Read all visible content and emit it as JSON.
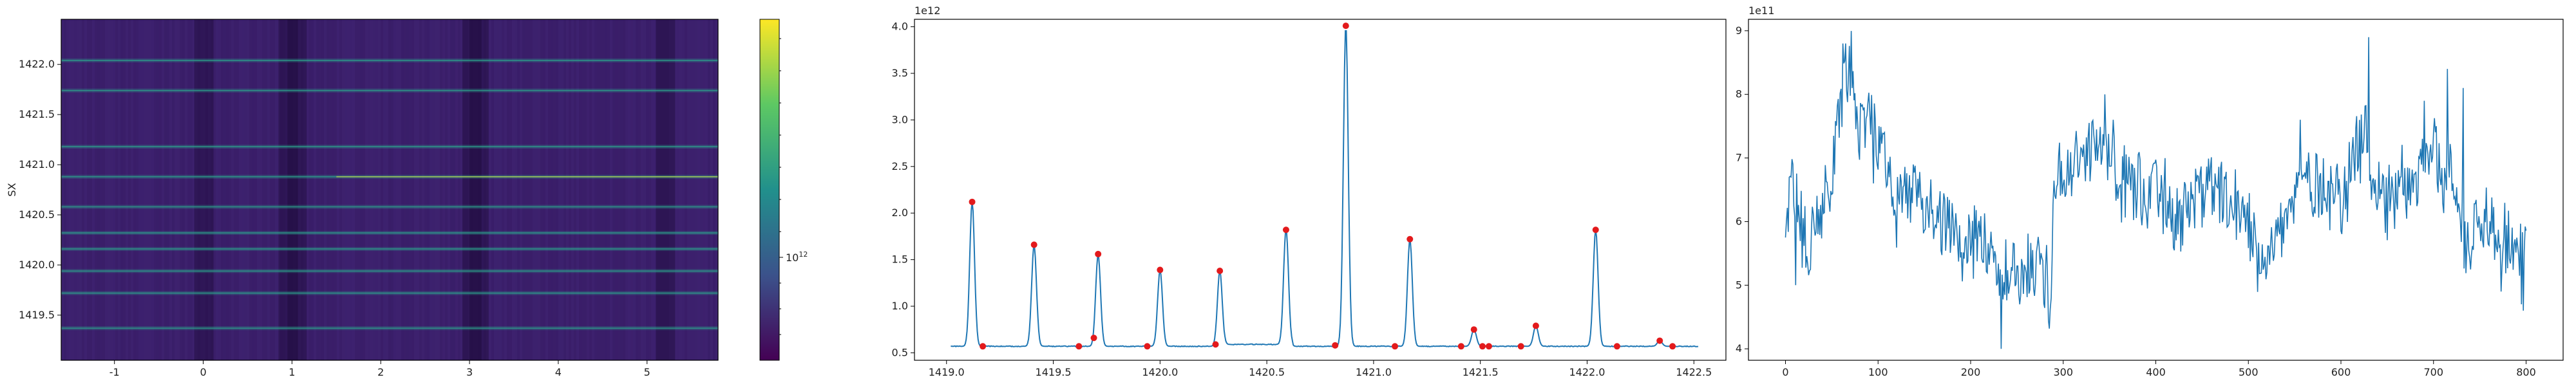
{
  "chart_data": [
    {
      "type": "heatmap",
      "title": "",
      "xlabel": "",
      "ylabel": "SX",
      "xlim": [
        -1.6,
        5.8
      ],
      "ylim": [
        1419.05,
        1422.45
      ],
      "x_ticks": [
        -1,
        0,
        1,
        2,
        3,
        4,
        5
      ],
      "y_ticks": [
        1419.5,
        1420.0,
        1420.5,
        1421.0,
        1421.5,
        1422.0
      ],
      "y_tick_labels": [
        "1419.5",
        "1420.0",
        "1420.5",
        "1421.0",
        "1421.5",
        "1422.0"
      ],
      "colormap": "viridis",
      "colorbar": {
        "scale": "log",
        "label": "",
        "tick_label": "10^12",
        "tick_label_base": "10",
        "tick_label_exp": "12"
      },
      "bright_bands_sx": [
        1419.37,
        1419.72,
        1419.94,
        1420.16,
        1420.32,
        1420.58,
        1420.88,
        1421.18,
        1421.74,
        1422.04
      ],
      "dark_columns_x": [
        0.0,
        0.95,
        1.05,
        3.02,
        3.1,
        5.2
      ],
      "background_color": "#3b1f6b",
      "band_color": "#2ca58d",
      "highlight_color": "#c9e04a"
    },
    {
      "type": "line",
      "title": "",
      "xlabel": "",
      "ylabel": "",
      "y_offset_label": "1e12",
      "xlim": [
        1418.85,
        1422.65
      ],
      "ylim": [
        0.42,
        4.08
      ],
      "x_ticks": [
        1419.0,
        1419.5,
        1420.0,
        1420.5,
        1421.0,
        1421.5,
        1422.0,
        1422.5
      ],
      "x_tick_labels": [
        "1419.0",
        "1419.5",
        "1420.0",
        "1420.5",
        "1421.0",
        "1421.5",
        "1422.0",
        "1422.5"
      ],
      "y_ticks": [
        0.5,
        1.0,
        1.5,
        2.0,
        2.5,
        3.0,
        3.5,
        4.0
      ],
      "y_tick_labels": [
        "0.5",
        "1.0",
        "1.5",
        "2.0",
        "2.5",
        "3.0",
        "3.5",
        "4.0"
      ],
      "baseline": 0.57,
      "x_start": 1419.02,
      "x_end": 1422.52,
      "line_color": "#1f77b4",
      "marker_color": "#e31a1c",
      "peaks": [
        {
          "x": 1419.12,
          "y": 2.12
        },
        {
          "x": 1419.41,
          "y": 1.66
        },
        {
          "x": 1419.71,
          "y": 1.56
        },
        {
          "x": 1420.0,
          "y": 1.39
        },
        {
          "x": 1420.28,
          "y": 1.38
        },
        {
          "x": 1420.59,
          "y": 1.82
        },
        {
          "x": 1420.87,
          "y": 4.01
        },
        {
          "x": 1421.17,
          "y": 1.72
        },
        {
          "x": 1421.47,
          "y": 0.75
        },
        {
          "x": 1421.76,
          "y": 0.79
        },
        {
          "x": 1422.04,
          "y": 1.82
        },
        {
          "x": 1422.34,
          "y": 0.63
        }
      ],
      "markers": [
        {
          "x": 1419.12,
          "y": 2.12
        },
        {
          "x": 1419.17,
          "y": 0.57
        },
        {
          "x": 1419.41,
          "y": 1.66
        },
        {
          "x": 1419.62,
          "y": 0.57
        },
        {
          "x": 1419.69,
          "y": 0.66
        },
        {
          "x": 1419.71,
          "y": 1.56
        },
        {
          "x": 1419.94,
          "y": 0.57
        },
        {
          "x": 1420.0,
          "y": 1.39
        },
        {
          "x": 1420.26,
          "y": 0.59
        },
        {
          "x": 1420.28,
          "y": 1.38
        },
        {
          "x": 1420.59,
          "y": 1.82
        },
        {
          "x": 1420.82,
          "y": 0.58
        },
        {
          "x": 1420.87,
          "y": 4.01
        },
        {
          "x": 1421.1,
          "y": 0.57
        },
        {
          "x": 1421.17,
          "y": 1.72
        },
        {
          "x": 1421.41,
          "y": 0.57
        },
        {
          "x": 1421.47,
          "y": 0.75
        },
        {
          "x": 1421.51,
          "y": 0.57
        },
        {
          "x": 1421.54,
          "y": 0.57
        },
        {
          "x": 1421.69,
          "y": 0.57
        },
        {
          "x": 1421.76,
          "y": 0.79
        },
        {
          "x": 1422.04,
          "y": 1.82
        },
        {
          "x": 1422.14,
          "y": 0.57
        },
        {
          "x": 1422.34,
          "y": 0.63
        },
        {
          "x": 1422.4,
          "y": 0.57
        }
      ]
    },
    {
      "type": "line",
      "title": "",
      "xlabel": "",
      "ylabel": "",
      "y_offset_label": "1e11",
      "xlim": [
        -40,
        840
      ],
      "ylim": [
        3.82,
        9.18
      ],
      "x_ticks": [
        0,
        100,
        200,
        300,
        400,
        500,
        600,
        700,
        800
      ],
      "x_tick_labels": [
        "0",
        "100",
        "200",
        "300",
        "400",
        "500",
        "600",
        "700",
        "800"
      ],
      "y_ticks": [
        4,
        5,
        6,
        7,
        8,
        9
      ],
      "y_tick_labels": [
        "4",
        "5",
        "6",
        "7",
        "8",
        "9"
      ],
      "line_color": "#1f77b4",
      "anchors": [
        [
          0,
          5.5
        ],
        [
          5,
          6.6
        ],
        [
          15,
          6.0
        ],
        [
          25,
          5.3
        ],
        [
          35,
          6.2
        ],
        [
          50,
          6.8
        ],
        [
          60,
          7.9
        ],
        [
          70,
          8.4
        ],
        [
          80,
          7.5
        ],
        [
          90,
          7.8
        ],
        [
          100,
          7.4
        ],
        [
          110,
          6.9
        ],
        [
          120,
          6.2
        ],
        [
          135,
          6.5
        ],
        [
          150,
          6.2
        ],
        [
          165,
          6.0
        ],
        [
          180,
          5.9
        ],
        [
          195,
          5.6
        ],
        [
          205,
          5.9
        ],
        [
          220,
          5.4
        ],
        [
          235,
          5.0
        ],
        [
          245,
          5.4
        ],
        [
          255,
          5.0
        ],
        [
          265,
          5.4
        ],
        [
          280,
          5.0
        ],
        [
          286,
          4.9
        ],
        [
          290,
          6.6
        ],
        [
          300,
          6.8
        ],
        [
          320,
          6.9
        ],
        [
          340,
          7.3
        ],
        [
          360,
          6.6
        ],
        [
          380,
          6.5
        ],
        [
          400,
          6.6
        ],
        [
          420,
          6.1
        ],
        [
          440,
          6.3
        ],
        [
          460,
          6.5
        ],
        [
          480,
          6.2
        ],
        [
          500,
          6.0
        ],
        [
          510,
          5.5
        ],
        [
          520,
          5.6
        ],
        [
          540,
          6.0
        ],
        [
          560,
          6.7
        ],
        [
          580,
          6.6
        ],
        [
          600,
          6.4
        ],
        [
          615,
          6.9
        ],
        [
          625,
          7.5
        ],
        [
          635,
          6.7
        ],
        [
          650,
          6.3
        ],
        [
          665,
          6.7
        ],
        [
          680,
          6.6
        ],
        [
          700,
          7.2
        ],
        [
          710,
          6.6
        ],
        [
          720,
          6.9
        ],
        [
          735,
          5.5
        ],
        [
          745,
          6.0
        ],
        [
          760,
          6.1
        ],
        [
          775,
          5.8
        ],
        [
          790,
          5.5
        ],
        [
          800,
          5.9
        ]
      ],
      "spikes": [
        [
          6,
          6.7
        ],
        [
          8,
          6.9
        ],
        [
          11,
          5.0
        ],
        [
          62,
          8.8
        ],
        [
          65,
          8.8
        ],
        [
          68,
          8.3
        ],
        [
          72,
          8.1
        ],
        [
          95,
          6.6
        ],
        [
          203,
          5.1
        ],
        [
          233,
          4.0
        ],
        [
          287,
          4.8
        ],
        [
          345,
          8.0
        ],
        [
          354,
          7.6
        ],
        [
          520,
          5.2
        ],
        [
          556,
          7.6
        ],
        [
          630,
          8.9
        ],
        [
          690,
          7.9
        ],
        [
          715,
          8.4
        ],
        [
          732,
          8.1
        ],
        [
          773,
          4.9
        ],
        [
          795,
          4.7
        ],
        [
          797,
          4.6
        ]
      ]
    }
  ]
}
